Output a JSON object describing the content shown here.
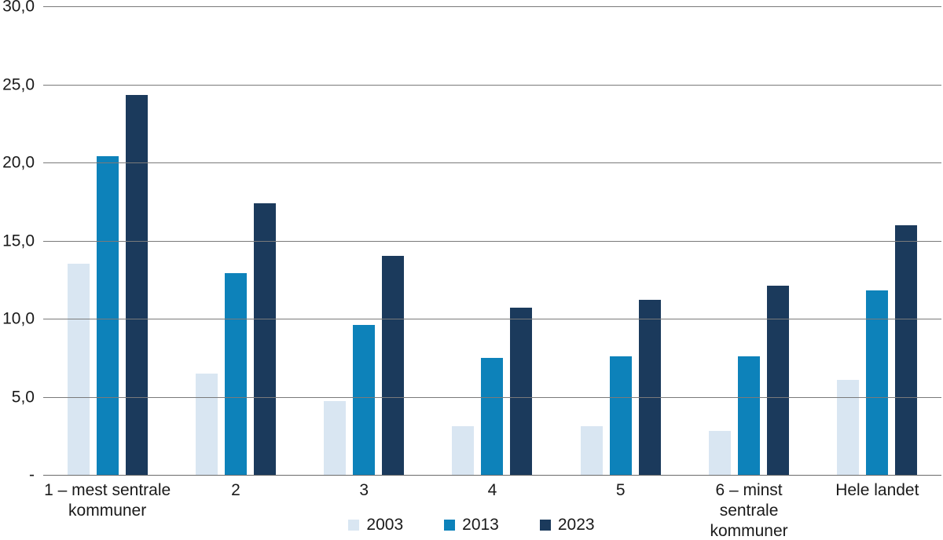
{
  "chart_data": {
    "type": "bar",
    "title": "",
    "xlabel": "",
    "ylabel": "",
    "categories": [
      "1 – mest sentrale kommuner",
      "2",
      "3",
      "4",
      "5",
      "6 – minst sentrale kommuner",
      "Hele landet"
    ],
    "series": [
      {
        "name": "2003",
        "color": "#d9e6f2",
        "values": [
          13.5,
          6.5,
          4.7,
          3.1,
          3.1,
          2.8,
          6.1
        ]
      },
      {
        "name": "2013",
        "color": "#0d82ba",
        "values": [
          20.4,
          12.9,
          9.6,
          7.5,
          7.6,
          7.6,
          11.8
        ]
      },
      {
        "name": "2023",
        "color": "#1b3a5c",
        "values": [
          24.3,
          17.4,
          14.0,
          10.7,
          11.2,
          12.1,
          16.0
        ]
      }
    ],
    "ylim": [
      0,
      30
    ],
    "ytick_step": 5,
    "yticks": [
      {
        "value": 30,
        "label": "30,0"
      },
      {
        "value": 25,
        "label": "25,0"
      },
      {
        "value": 20,
        "label": "20,0"
      },
      {
        "value": 15,
        "label": "15,0"
      },
      {
        "value": 10,
        "label": "10,0"
      },
      {
        "value": 5,
        "label": "5,0"
      },
      {
        "value": 0,
        "label": "-"
      }
    ],
    "grid": true,
    "legend_position": "bottom"
  },
  "colors": {
    "background": "#ffffff",
    "gridline": "#7a7a7a",
    "text": "#1a1a1a"
  }
}
